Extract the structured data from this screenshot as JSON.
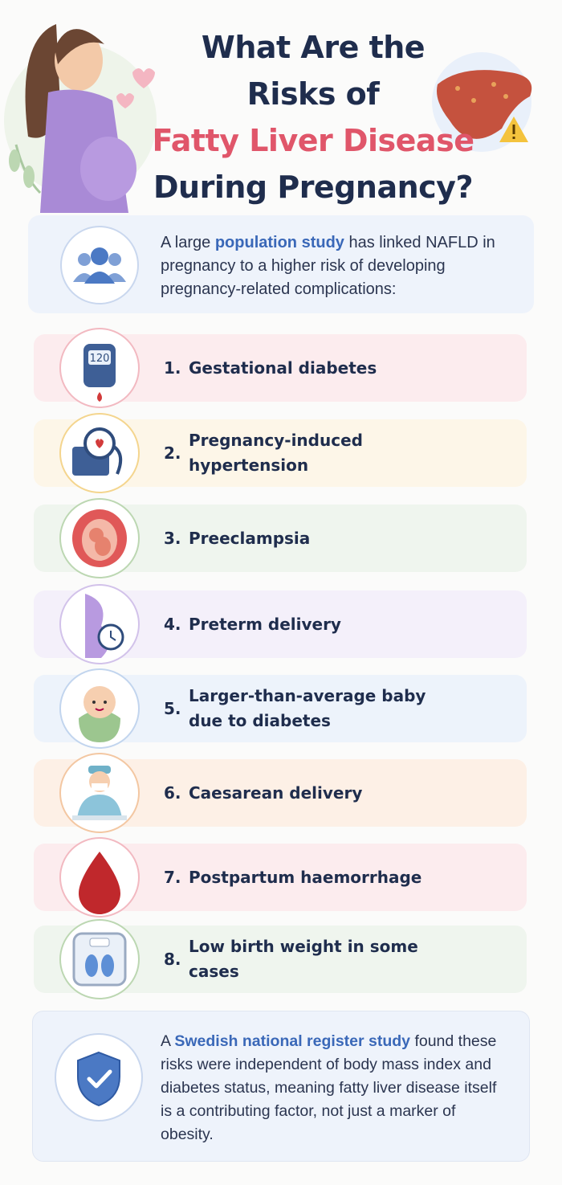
{
  "title": {
    "line1": "What Are the",
    "line2": "Risks of",
    "highlight": "Fatty Liver Disease",
    "line4": "During Pregnancy?"
  },
  "intro": {
    "before": "A large",
    "highlight": "population study",
    "after": "has linked NAFLD in pregnancy to a higher risk of developing pregnancy-related complications:"
  },
  "items": [
    {
      "number": "1.",
      "label": "Gestational diabetes",
      "icon_text": "120"
    },
    {
      "number": "2.",
      "label": "Pregnancy-induced hypertension"
    },
    {
      "number": "3.",
      "label": "Preeclampsia"
    },
    {
      "number": "4.",
      "label": "Preterm delivery"
    },
    {
      "number": "5.",
      "label": "Larger-than-average baby due to diabetes"
    },
    {
      "number": "6.",
      "label": "Caesarean delivery"
    },
    {
      "number": "7.",
      "label": "Postpartum haemorrhage"
    },
    {
      "number": "8.",
      "label": "Low birth weight in some cases"
    }
  ],
  "footer": {
    "before": "A",
    "highlight": "Swedish national register study",
    "after": "found these risks were independent of body mass index and diabetes status, meaning fatty liver disease itself is a contributing factor, not just a marker of obesity."
  }
}
